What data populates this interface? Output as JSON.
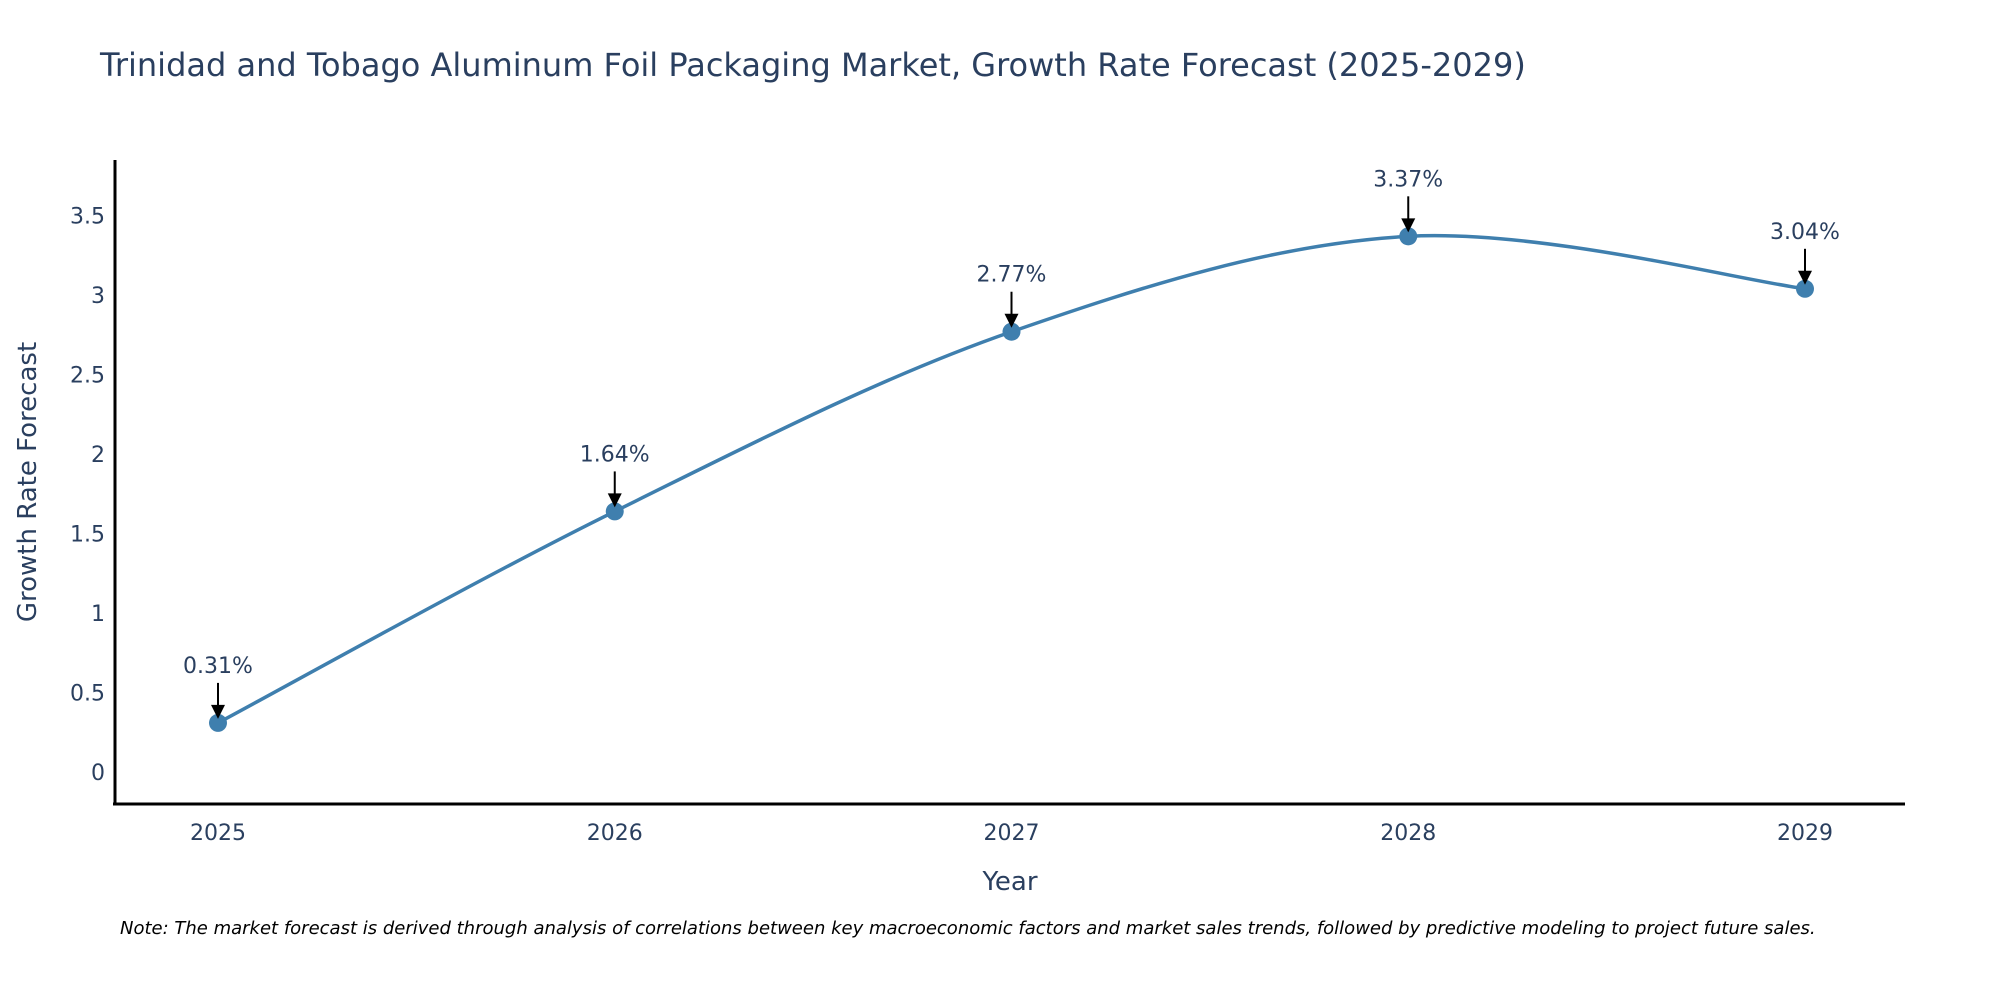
{
  "chart_data": {
    "type": "line",
    "title": "Trinidad and Tobago Aluminum Foil Packaging Market, Growth Rate Forecast (2025-2029)",
    "xlabel": "Year",
    "ylabel": "Growth Rate Forecast",
    "categories": [
      "2025",
      "2026",
      "2027",
      "2028",
      "2029"
    ],
    "series": [
      {
        "name": "Growth Rate Forecast",
        "values": [
          0.31,
          1.64,
          2.77,
          3.37,
          3.04
        ],
        "labels": [
          "0.31%",
          "1.64%",
          "2.77%",
          "3.37%",
          "3.04%"
        ]
      }
    ],
    "ylim": [
      -0.2,
      3.85
    ],
    "yticks": [
      0,
      0.5,
      1,
      1.5,
      2,
      2.5,
      3,
      3.5
    ],
    "ytick_labels": [
      "0",
      "0.5",
      "1",
      "1.5",
      "2",
      "2.5",
      "3",
      "3.5"
    ],
    "grid": false,
    "line_color": "#3f7fae",
    "marker_color": "#3f7fae"
  },
  "footnote": "Note: The market forecast is derived through analysis of correlations between key macroeconomic factors and market sales trends, followed by predictive modeling to project future sales."
}
